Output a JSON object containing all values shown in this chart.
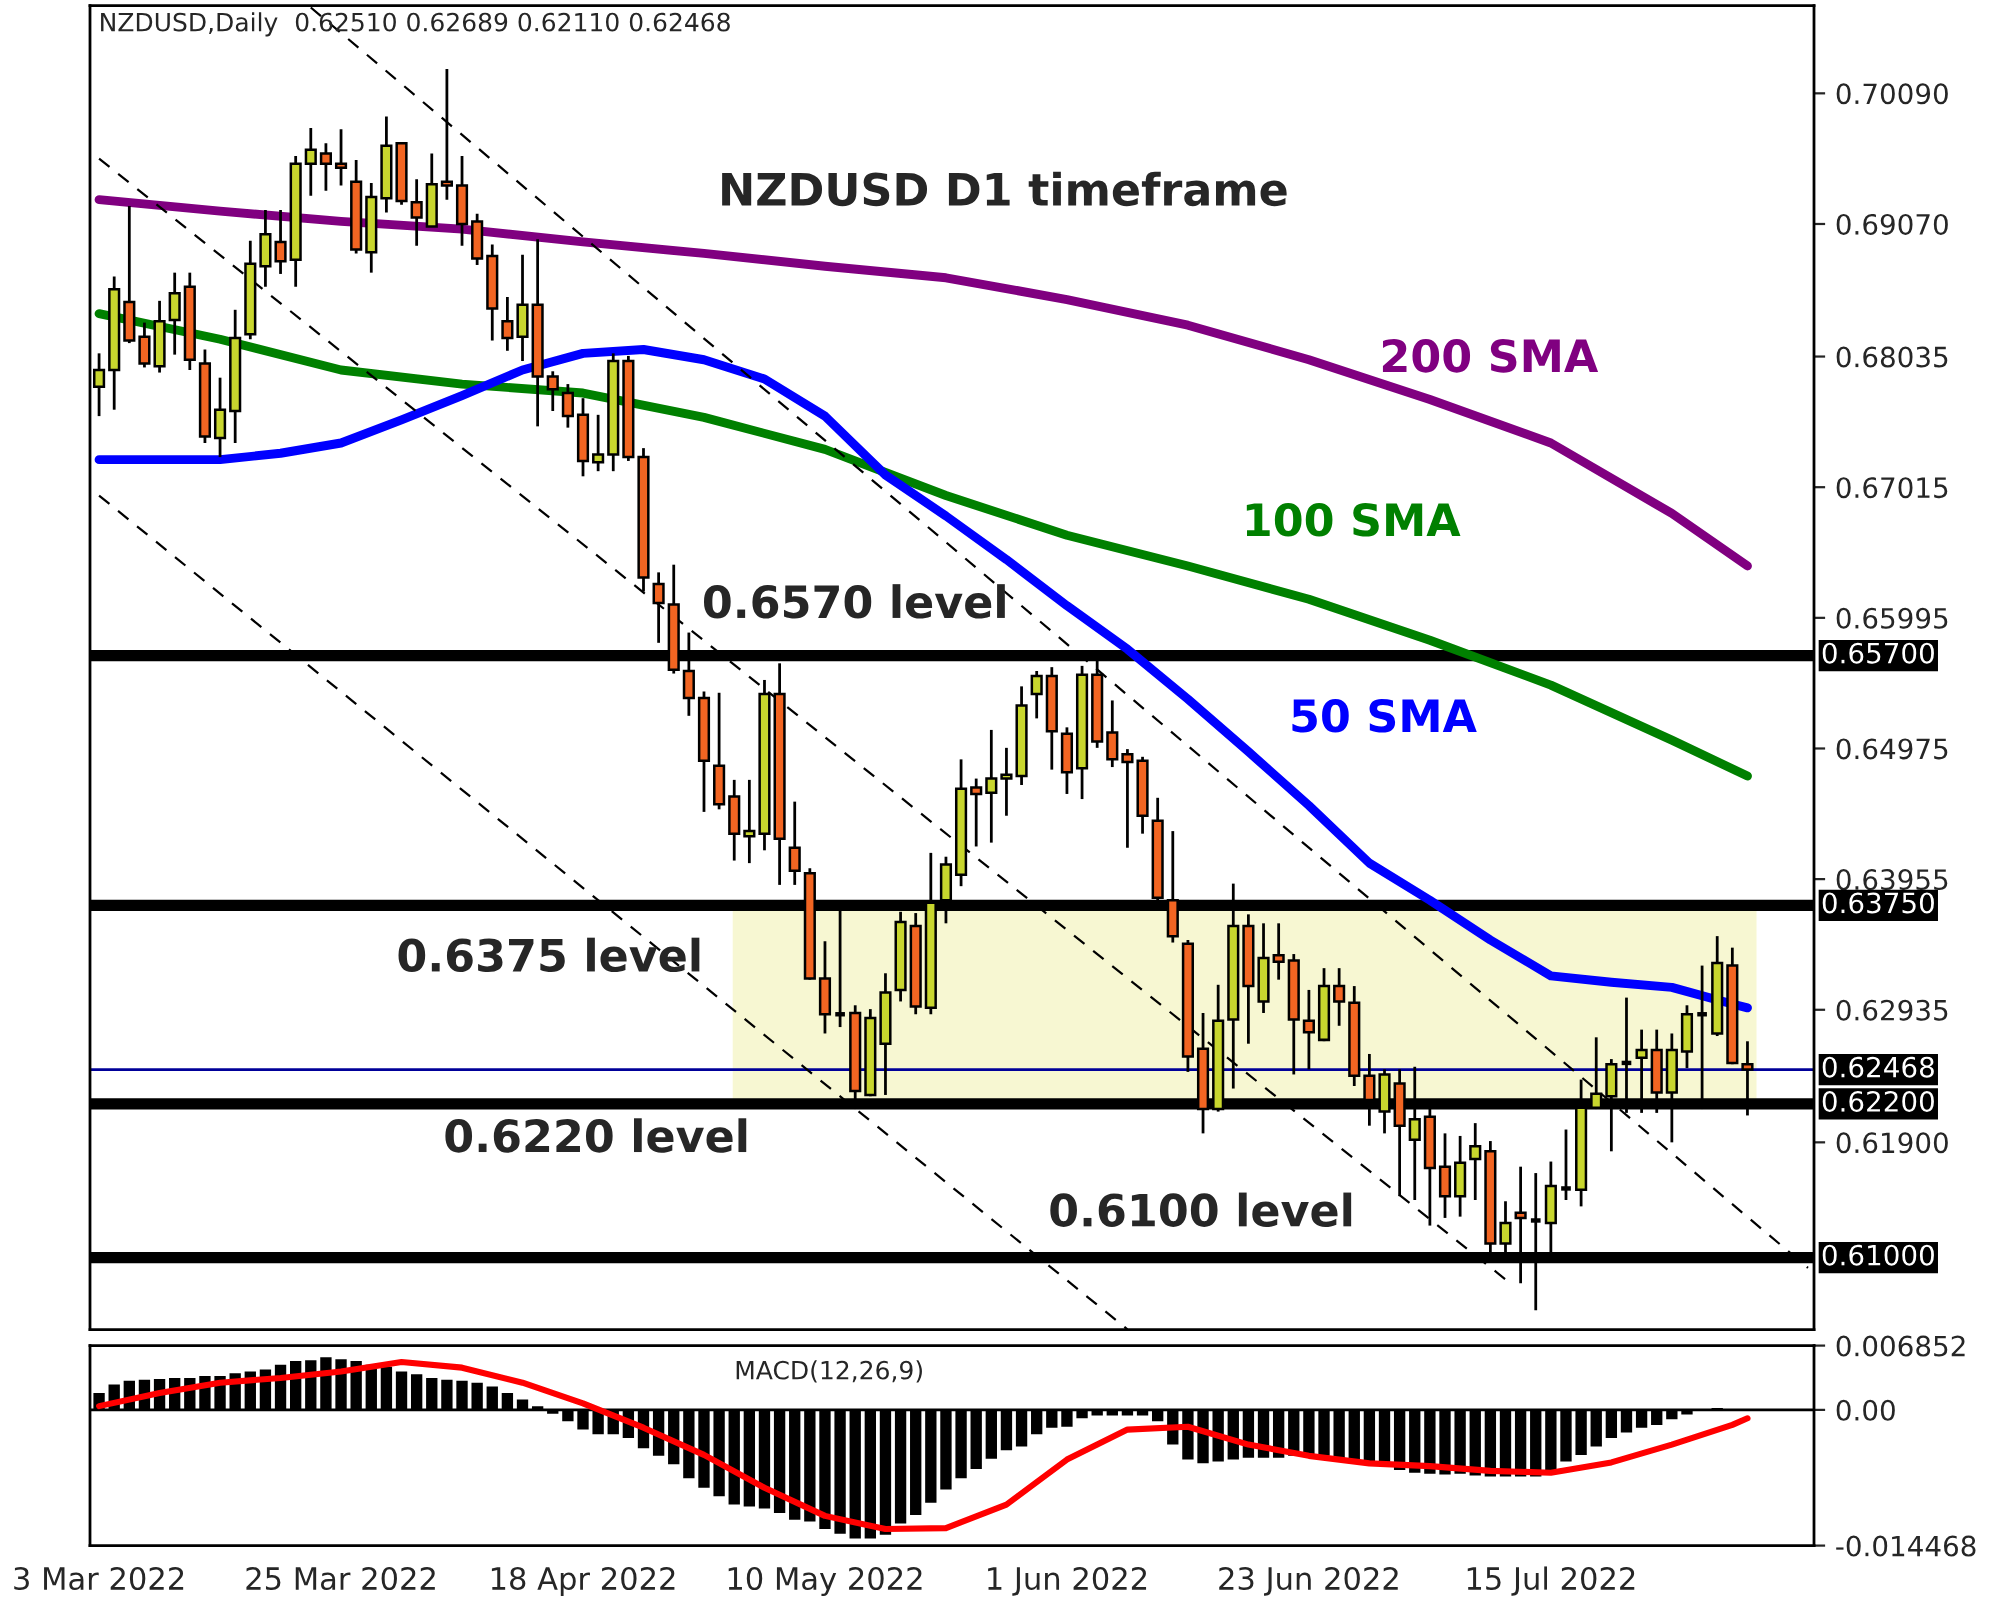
{
  "chart_data": [
    {
      "type": "candlestick",
      "title": "NZDUSD D1 timeframe",
      "categories": [
        null,
        null,
        null,
        null,
        null,
        null,
        null,
        null,
        null,
        null,
        null,
        null,
        null,
        null,
        null,
        null,
        null,
        null,
        null,
        null,
        null,
        null,
        null,
        null,
        null,
        null,
        null,
        null,
        null,
        null,
        null,
        null,
        null,
        null,
        null,
        null,
        null,
        null,
        null,
        null,
        null,
        null,
        null,
        null,
        null,
        null,
        null,
        null,
        null,
        null,
        null,
        null,
        null,
        null,
        null,
        null,
        null,
        null,
        null,
        null,
        null,
        null,
        null,
        null,
        null,
        null,
        null,
        null,
        null,
        null,
        null,
        null,
        null,
        null,
        null,
        null,
        null,
        null,
        null,
        null,
        null,
        null,
        null,
        null,
        null,
        null,
        null,
        null,
        null,
        null,
        null,
        null,
        null,
        null,
        null,
        null,
        null,
        null,
        null,
        null,
        null,
        null,
        null,
        null,
        null,
        null,
        null,
        null,
        null,
        null,
        null,
        null,
        null,
        null
      ],
      "ohlc": [
        [
          0.678,
          0.6806,
          0.6757,
          0.6793
        ],
        [
          0.6793,
          0.6866,
          0.6762,
          0.6856
        ],
        [
          0.6846,
          0.6921,
          0.6814,
          0.6816
        ],
        [
          0.6819,
          0.683,
          0.6795,
          0.6798
        ],
        [
          0.6796,
          0.6847,
          0.6791,
          0.6831
        ],
        [
          0.6832,
          0.6869,
          0.6805,
          0.6853
        ],
        [
          0.6858,
          0.6869,
          0.6793,
          0.6801
        ],
        [
          0.6798,
          0.6809,
          0.6736,
          0.6741
        ],
        [
          0.674,
          0.6787,
          0.6725,
          0.6762
        ],
        [
          0.6761,
          0.684,
          0.6736,
          0.6818
        ],
        [
          0.6821,
          0.6894,
          0.6817,
          0.6876
        ],
        [
          0.6874,
          0.6918,
          0.6858,
          0.6899
        ],
        [
          0.6893,
          0.6918,
          0.6868,
          0.6878
        ],
        [
          0.6879,
          0.696,
          0.6858,
          0.6954
        ],
        [
          0.6954,
          0.6982,
          0.6929,
          0.6965
        ],
        [
          0.6962,
          0.697,
          0.6933,
          0.6954
        ],
        [
          0.6954,
          0.6981,
          0.6937,
          0.6951
        ],
        [
          0.694,
          0.6957,
          0.6884,
          0.6887
        ],
        [
          0.6885,
          0.6939,
          0.6869,
          0.6928
        ],
        [
          0.6927,
          0.6991,
          0.6916,
          0.6968
        ],
        [
          0.697,
          0.6971,
          0.6922,
          0.6925
        ],
        [
          0.6924,
          0.6942,
          0.689,
          0.6912
        ],
        [
          0.6905,
          0.6962,
          0.6905,
          0.6938
        ],
        [
          0.694,
          0.7028,
          0.6926,
          0.6937
        ],
        [
          0.6937,
          0.696,
          0.689,
          0.6907
        ],
        [
          0.6909,
          0.6915,
          0.6875,
          0.688
        ],
        [
          0.6882,
          0.6891,
          0.6816,
          0.6841
        ],
        [
          0.6831,
          0.685,
          0.6808,
          0.6818
        ],
        [
          0.6819,
          0.6883,
          0.68,
          0.6844
        ],
        [
          0.6844,
          0.6895,
          0.6749,
          0.6788
        ],
        [
          0.6788,
          0.6792,
          0.6761,
          0.6778
        ],
        [
          0.6775,
          0.6782,
          0.6748,
          0.6757
        ],
        [
          0.6758,
          0.6771,
          0.671,
          0.6722
        ],
        [
          0.6721,
          0.6758,
          0.6714,
          0.6727
        ],
        [
          0.6727,
          0.6806,
          0.6714,
          0.68
        ],
        [
          0.68,
          0.6804,
          0.6722,
          0.6725
        ],
        [
          0.6725,
          0.6732,
          0.662,
          0.6631
        ],
        [
          0.6626,
          0.6635,
          0.658,
          0.6611
        ],
        [
          0.661,
          0.6641,
          0.6556,
          0.6559
        ],
        [
          0.6558,
          0.6588,
          0.6523,
          0.6537
        ],
        [
          0.6537,
          0.6542,
          0.6448,
          0.6488
        ],
        [
          0.6484,
          0.6541,
          0.645,
          0.6454
        ],
        [
          0.646,
          0.6473,
          0.641,
          0.6431
        ],
        [
          0.6429,
          0.6473,
          0.6408,
          0.6433
        ],
        [
          0.6431,
          0.6551,
          0.6418,
          0.654
        ],
        [
          0.654,
          0.6564,
          0.6391,
          0.6427
        ],
        [
          0.642,
          0.6456,
          0.6391,
          0.6402
        ],
        [
          0.64,
          0.6404,
          0.6317,
          0.6318
        ],
        [
          0.6318,
          0.6347,
          0.6275,
          0.629
        ],
        [
          0.629,
          0.6372,
          0.628,
          0.629
        ],
        [
          0.6291,
          0.6297,
          0.6216,
          0.623
        ],
        [
          0.6227,
          0.6294,
          0.6226,
          0.6287
        ],
        [
          0.6267,
          0.6322,
          0.6227,
          0.6307
        ],
        [
          0.6309,
          0.637,
          0.63,
          0.6362
        ],
        [
          0.6359,
          0.6369,
          0.629,
          0.6296
        ],
        [
          0.6295,
          0.6416,
          0.629,
          0.6377
        ],
        [
          0.6379,
          0.6413,
          0.6361,
          0.6407
        ],
        [
          0.6399,
          0.6489,
          0.639,
          0.6466
        ],
        [
          0.6467,
          0.6474,
          0.6421,
          0.6462
        ],
        [
          0.6463,
          0.6512,
          0.6424,
          0.6474
        ],
        [
          0.6474,
          0.6498,
          0.6445,
          0.6477
        ],
        [
          0.6476,
          0.6546,
          0.6469,
          0.6531
        ],
        [
          0.654,
          0.6558,
          0.6521,
          0.6554
        ],
        [
          0.6554,
          0.6561,
          0.6481,
          0.6511
        ],
        [
          0.6509,
          0.6514,
          0.6462,
          0.6479
        ],
        [
          0.6482,
          0.6562,
          0.6458,
          0.6555
        ],
        [
          0.6555,
          0.6572,
          0.6498,
          0.6503
        ],
        [
          0.651,
          0.6535,
          0.6483,
          0.6489
        ],
        [
          0.6493,
          0.6497,
          0.642,
          0.6487
        ],
        [
          0.6488,
          0.6491,
          0.6431,
          0.6445
        ],
        [
          0.6441,
          0.6459,
          0.6378,
          0.6381
        ],
        [
          0.6379,
          0.6433,
          0.6346,
          0.6351
        ],
        [
          0.6345,
          0.6348,
          0.6245,
          0.6257
        ],
        [
          0.6263,
          0.6291,
          0.6197,
          0.6216
        ],
        [
          0.6216,
          0.6313,
          0.6214,
          0.6285
        ],
        [
          0.6286,
          0.6392,
          0.6232,
          0.6359
        ],
        [
          0.6359,
          0.6368,
          0.6267,
          0.6312
        ],
        [
          0.63,
          0.6361,
          0.6291,
          0.6334
        ],
        [
          0.6336,
          0.6361,
          0.6317,
          0.6331
        ],
        [
          0.6332,
          0.6337,
          0.6243,
          0.6286
        ],
        [
          0.6285,
          0.6309,
          0.6247,
          0.6276
        ],
        [
          0.627,
          0.6326,
          0.6269,
          0.6312
        ],
        [
          0.6312,
          0.6326,
          0.6281,
          0.63
        ],
        [
          0.6299,
          0.6312,
          0.6234,
          0.6242
        ],
        [
          0.6242,
          0.6259,
          0.6203,
          0.6223
        ],
        [
          0.6214,
          0.6247,
          0.6197,
          0.6243
        ],
        [
          0.6236,
          0.6247,
          0.6148,
          0.6203
        ],
        [
          0.6192,
          0.6249,
          0.6145,
          0.6208
        ],
        [
          0.621,
          0.6219,
          0.6125,
          0.617
        ],
        [
          0.6171,
          0.6197,
          0.6131,
          0.6148
        ],
        [
          0.6148,
          0.6195,
          0.6132,
          0.6174
        ],
        [
          0.6177,
          0.6205,
          0.6145,
          0.6187
        ],
        [
          0.6183,
          0.6191,
          0.6096,
          0.6111
        ],
        [
          0.6111,
          0.6144,
          0.6104,
          0.6127
        ],
        [
          0.6135,
          0.6171,
          0.608,
          0.6131
        ],
        [
          0.6129,
          0.6166,
          0.6059,
          0.6129
        ],
        [
          0.6127,
          0.6175,
          0.6104,
          0.6156
        ],
        [
          0.6154,
          0.62,
          0.6145,
          0.6154
        ],
        [
          0.6153,
          0.6239,
          0.614,
          0.6217
        ],
        [
          0.6217,
          0.6272,
          0.6216,
          0.6228
        ],
        [
          0.6226,
          0.6255,
          0.6183,
          0.6251
        ],
        [
          0.6252,
          0.6303,
          0.6213,
          0.6252
        ],
        [
          0.6256,
          0.6278,
          0.6213,
          0.6262
        ],
        [
          0.6262,
          0.6278,
          0.6213,
          0.6229
        ],
        [
          0.6229,
          0.6275,
          0.619,
          0.6262
        ],
        [
          0.6261,
          0.6297,
          0.6248,
          0.629
        ],
        [
          0.629,
          0.6328,
          0.6216,
          0.629
        ],
        [
          0.6275,
          0.6351,
          0.6273,
          0.633
        ],
        [
          0.6328,
          0.6342,
          0.6251,
          0.6252
        ],
        [
          0.6251,
          0.62689,
          0.6211,
          0.62468
        ],
        null,
        null,
        null,
        null
      ],
      "series": [
        {
          "name": "200 SMA",
          "type": "line",
          "line_style": "solid",
          "color": "#800080",
          "values": [
            0.6926,
            null,
            null,
            null,
            null,
            null,
            null,
            null,
            0.6917,
            null,
            null,
            null,
            null,
            null,
            null,
            null,
            0.6909,
            null,
            null,
            null,
            null,
            null,
            null,
            null,
            0.6903,
            null,
            null,
            null,
            null,
            null,
            null,
            null,
            0.6893,
            null,
            null,
            null,
            null,
            null,
            null,
            null,
            0.6884,
            null,
            null,
            null,
            null,
            null,
            null,
            null,
            0.6874,
            null,
            null,
            null,
            null,
            null,
            null,
            null,
            0.6865,
            null,
            null,
            null,
            null,
            null,
            null,
            null,
            0.6848,
            null,
            null,
            null,
            null,
            null,
            null,
            null,
            0.6828,
            null,
            null,
            null,
            null,
            null,
            null,
            null,
            0.6801,
            null,
            null,
            null,
            null,
            null,
            null,
            null,
            0.677,
            null,
            null,
            null,
            null,
            null,
            null,
            null,
            0.6736,
            null,
            null,
            null,
            null,
            null,
            null,
            null,
            0.6681,
            null,
            null,
            null,
            null,
            0.664,
            null,
            null,
            null,
            null
          ]
        },
        {
          "name": "100 SMA",
          "type": "line",
          "line_style": "solid",
          "color": "#008000",
          "values": [
            0.6837,
            null,
            null,
            null,
            null,
            null,
            null,
            null,
            0.6817,
            null,
            null,
            null,
            null,
            null,
            null,
            null,
            0.6793,
            null,
            null,
            null,
            null,
            null,
            null,
            null,
            0.6782,
            null,
            null,
            null,
            null,
            null,
            null,
            null,
            0.6775,
            null,
            null,
            null,
            null,
            null,
            null,
            null,
            0.6756,
            null,
            null,
            null,
            null,
            null,
            null,
            null,
            0.6731,
            null,
            null,
            null,
            null,
            null,
            null,
            null,
            0.6695,
            null,
            null,
            null,
            null,
            null,
            null,
            null,
            0.6664,
            null,
            null,
            null,
            null,
            null,
            null,
            null,
            0.664,
            null,
            null,
            null,
            null,
            null,
            null,
            null,
            0.6614,
            null,
            null,
            null,
            null,
            null,
            null,
            null,
            0.6582,
            null,
            null,
            null,
            null,
            null,
            null,
            null,
            0.6547,
            null,
            null,
            null,
            null,
            null,
            null,
            null,
            0.6504,
            null,
            null,
            null,
            null,
            0.6476,
            null,
            null,
            null,
            null
          ]
        },
        {
          "name": "50 SMA",
          "type": "line",
          "line_style": "solid",
          "color": "#0000ff",
          "values": [
            0.6723,
            null,
            null,
            null,
            0.6723,
            null,
            null,
            null,
            0.6723,
            null,
            null,
            null,
            0.6728,
            null,
            null,
            null,
            0.6736,
            null,
            null,
            null,
            0.6754,
            null,
            null,
            null,
            0.6773,
            null,
            null,
            null,
            0.6793,
            null,
            null,
            null,
            0.6806,
            null,
            null,
            null,
            0.6809,
            null,
            null,
            null,
            0.6801,
            null,
            null,
            null,
            0.6786,
            null,
            null,
            null,
            0.6757,
            null,
            null,
            null,
            0.6711,
            null,
            null,
            null,
            0.6679,
            null,
            null,
            null,
            0.6645,
            null,
            null,
            null,
            0.6609,
            null,
            null,
            null,
            0.6575,
            null,
            null,
            null,
            0.6536,
            null,
            null,
            null,
            0.6495,
            null,
            null,
            null,
            0.6453,
            null,
            null,
            null,
            0.6408,
            null,
            null,
            null,
            0.6379,
            null,
            null,
            null,
            0.6348,
            null,
            null,
            null,
            0.632,
            null,
            null,
            null,
            0.6315,
            null,
            null,
            null,
            0.6311,
            null,
            null,
            null,
            0.6298,
            0.6295,
            null,
            null,
            null,
            null
          ]
        },
        {
          "type": "line",
          "line_style": "dashed",
          "color": "#000000",
          "values": [
            null,
            null,
            null,
            null,
            null,
            null,
            null,
            null,
            null,
            null,
            null,
            null,
            null,
            null,
            0.7076,
            null,
            null,
            null,
            null,
            null,
            null,
            null,
            null,
            null,
            null,
            null,
            null,
            null,
            null,
            null,
            null,
            null,
            null,
            null,
            null,
            null,
            null,
            null,
            null,
            null,
            null,
            null,
            null,
            null,
            null,
            null,
            null,
            null,
            null,
            null,
            null,
            null,
            null,
            null,
            null,
            null,
            null,
            null,
            null,
            null,
            null,
            null,
            null,
            null,
            null,
            null,
            null,
            null,
            null,
            null,
            null,
            null,
            null,
            null,
            null,
            null,
            null,
            null,
            null,
            null,
            null,
            null,
            null,
            null,
            null,
            null,
            null,
            null,
            null,
            null,
            null,
            null,
            null,
            null,
            null,
            null,
            null,
            null,
            null,
            null,
            null,
            null,
            null,
            null,
            null,
            null,
            null,
            null,
            null,
            null,
            null,
            null,
            null,
            0.6092
          ]
        },
        {
          "type": "line",
          "line_style": "dashed",
          "color": "#000000",
          "values": [
            0.6958,
            null,
            null,
            null,
            null,
            null,
            null,
            null,
            null,
            null,
            null,
            null,
            null,
            null,
            null,
            null,
            null,
            null,
            null,
            null,
            null,
            null,
            null,
            null,
            null,
            null,
            null,
            null,
            null,
            null,
            null,
            null,
            null,
            null,
            null,
            null,
            null,
            null,
            null,
            null,
            null,
            null,
            null,
            null,
            null,
            null,
            null,
            null,
            null,
            null,
            null,
            null,
            null,
            null,
            null,
            null,
            null,
            null,
            null,
            null,
            null,
            null,
            null,
            null,
            null,
            null,
            null,
            null,
            null,
            null,
            null,
            null,
            null,
            null,
            null,
            null,
            null,
            null,
            null,
            null,
            null,
            null,
            null,
            null,
            null,
            null,
            null,
            null,
            null,
            null,
            null,
            null,
            null,
            0.6083,
            null,
            null,
            null,
            null,
            null,
            null,
            null,
            null,
            null,
            null,
            null,
            null,
            null,
            null,
            null,
            null,
            null,
            null,
            null,
            null
          ]
        },
        {
          "type": "line",
          "line_style": "dashed",
          "color": "#000000",
          "values": [
            0.6695,
            null,
            null,
            null,
            null,
            null,
            null,
            null,
            null,
            null,
            null,
            null,
            null,
            null,
            null,
            null,
            null,
            null,
            null,
            null,
            null,
            null,
            null,
            null,
            null,
            null,
            null,
            null,
            null,
            null,
            null,
            null,
            null,
            null,
            null,
            null,
            null,
            null,
            null,
            null,
            null,
            null,
            null,
            null,
            null,
            null,
            null,
            null,
            null,
            null,
            null,
            null,
            null,
            null,
            null,
            null,
            null,
            null,
            null,
            null,
            null,
            null,
            null,
            null,
            null,
            null,
            null,
            null,
            0.6044,
            null,
            null,
            null,
            null,
            null,
            null,
            null,
            null,
            null,
            null,
            null,
            null,
            null,
            null,
            null,
            null,
            null,
            null,
            null,
            null,
            null,
            null,
            null,
            null,
            null,
            null,
            null,
            null,
            null,
            null,
            null,
            null,
            null,
            null,
            null,
            null,
            null,
            null,
            null,
            null,
            null,
            null,
            null,
            null,
            null
          ]
        }
      ],
      "ylim": [
        0.60438,
        0.70775
      ],
      "yticks": [
        {
          "value": 0.7009,
          "label": "0.70090"
        },
        {
          "value": 0.6907,
          "label": "0.69070"
        },
        {
          "value": 0.68035,
          "label": "0.68035"
        },
        {
          "value": 0.67015,
          "label": "0.67015"
        },
        {
          "value": 0.65995,
          "label": "0.65995"
        },
        {
          "value": 0.64975,
          "label": "0.64975"
        },
        {
          "value": 0.63955,
          "label": "0.63955"
        },
        {
          "value": 0.62935,
          "label": "0.62935"
        },
        {
          "value": 0.619,
          "label": "0.61900"
        }
      ],
      "tick_labels": "y",
      "ref_lines": [
        {
          "axis": "y",
          "value": 0.657,
          "label": "0.65700",
          "color": "#000000",
          "line_style": "solid"
        },
        {
          "axis": "y",
          "value": 0.6375,
          "label": "0.63750",
          "color": "#000000",
          "line_style": "solid"
        },
        {
          "axis": "y",
          "value": 0.622,
          "label": "0.62200",
          "color": "#000000",
          "line_style": "solid"
        },
        {
          "axis": "y",
          "value": 0.61,
          "label": "0.61000",
          "color": "#000000",
          "line_style": "solid"
        },
        {
          "axis": "y",
          "value": 0.62468,
          "label": "0.62468",
          "color": "#000099",
          "line_style": "solid"
        }
      ],
      "bands": [
        {
          "axis": "y",
          "from": 0.622,
          "to": 0.6375,
          "color": "#f7f7d2"
        }
      ],
      "annotations": [
        "NZDUSD,Daily  0.62510 0.62689 0.62110 0.62468",
        "0.6570 level",
        "0.6375 level",
        "0.6220 level",
        "0.6100 level"
      ]
    },
    {
      "type": "bar",
      "title": "MACD(12,26,9)",
      "categories": [
        "3 Mar 2022",
        null,
        null,
        null,
        null,
        null,
        null,
        null,
        null,
        null,
        null,
        null,
        null,
        null,
        null,
        null,
        "25 Mar 2022",
        null,
        null,
        null,
        null,
        null,
        null,
        null,
        null,
        null,
        null,
        null,
        null,
        null,
        null,
        null,
        "18 Apr 2022",
        null,
        null,
        null,
        null,
        null,
        null,
        null,
        null,
        null,
        null,
        null,
        null,
        null,
        null,
        null,
        "10 May 2022",
        null,
        null,
        null,
        null,
        null,
        null,
        null,
        null,
        null,
        null,
        null,
        null,
        null,
        null,
        null,
        "1 Jun 2022",
        null,
        null,
        null,
        null,
        null,
        null,
        null,
        null,
        null,
        null,
        null,
        null,
        null,
        null,
        null,
        "23 Jun 2022",
        null,
        null,
        null,
        null,
        null,
        null,
        null,
        null,
        null,
        null,
        null,
        null,
        null,
        null,
        null,
        "15 Jul 2022",
        null,
        null,
        null,
        null,
        null,
        null,
        null,
        null,
        null,
        null,
        null,
        null,
        null,
        null,
        null,
        null,
        null
      ],
      "series": [
        {
          "type": "bar",
          "color": "#000000",
          "values": [
            0.0018,
            0.0027,
            0.0031,
            0.0032,
            0.0033,
            0.0034,
            0.0034,
            0.0036,
            0.0036,
            0.0039,
            0.0041,
            0.0043,
            0.0048,
            0.0052,
            0.0053,
            0.0056,
            0.0054,
            0.0052,
            0.0048,
            0.0046,
            0.0041,
            0.0038,
            0.0034,
            0.0032,
            0.0031,
            0.0029,
            0.0025,
            0.0018,
            0.0011,
            0.0004,
            -0.0004,
            -0.0012,
            -0.0021,
            -0.0026,
            -0.0026,
            -0.003,
            -0.0041,
            -0.0049,
            -0.0058,
            -0.0073,
            -0.0083,
            -0.0092,
            -0.0101,
            -0.0103,
            -0.0105,
            -0.011,
            -0.0117,
            -0.0119,
            -0.0127,
            -0.0132,
            -0.0137,
            -0.0137,
            -0.0133,
            -0.0121,
            -0.0112,
            -0.0099,
            -0.0085,
            -0.0073,
            -0.0063,
            -0.0052,
            -0.0043,
            -0.0039,
            -0.0026,
            -0.0019,
            -0.0018,
            -0.0009,
            -0.0006,
            -0.0006,
            -0.0006,
            -0.0006,
            -0.0012,
            -0.0037,
            -0.0053,
            -0.0057,
            -0.0055,
            -0.0053,
            -0.0051,
            -0.0051,
            -0.0051,
            -0.0049,
            -0.0049,
            -0.0049,
            -0.0053,
            -0.0057,
            -0.0058,
            -0.006,
            -0.0064,
            -0.0067,
            -0.0068,
            -0.0069,
            -0.0068,
            -0.007,
            -0.0071,
            -0.0071,
            -0.0071,
            -0.0071,
            -0.0065,
            -0.0055,
            -0.0048,
            -0.0039,
            -0.003,
            -0.0024,
            -0.0019,
            -0.0016,
            -0.001,
            -0.0005,
            0.0001,
            0.0002,
            0.0001,
            0.0001,
            null,
            null,
            null,
            null
          ]
        },
        {
          "type": "line",
          "line_style": "solid",
          "color": "#ff0000",
          "values": [
            0.0004,
            null,
            null,
            null,
            0.0018,
            null,
            null,
            null,
            0.0029,
            null,
            null,
            null,
            0.0034,
            null,
            null,
            null,
            0.0041,
            null,
            null,
            null,
            0.0051,
            null,
            null,
            null,
            0.0045,
            null,
            null,
            null,
            0.0029,
            null,
            null,
            null,
            0.0007,
            null,
            null,
            null,
            -0.0019,
            null,
            null,
            null,
            -0.0048,
            null,
            null,
            null,
            -0.0083,
            null,
            null,
            null,
            -0.0113,
            null,
            null,
            null,
            -0.0127,
            null,
            null,
            null,
            -0.0126,
            null,
            null,
            null,
            -0.0101,
            null,
            null,
            null,
            -0.0053,
            null,
            null,
            null,
            -0.0021,
            null,
            null,
            null,
            -0.0018,
            null,
            null,
            null,
            -0.0037,
            null,
            null,
            null,
            -0.0049,
            null,
            null,
            null,
            -0.0057,
            null,
            null,
            null,
            -0.006,
            null,
            null,
            null,
            -0.0065,
            null,
            null,
            null,
            -0.0067,
            null,
            null,
            null,
            -0.0056,
            null,
            null,
            null,
            -0.0037,
            null,
            null,
            null,
            -0.0016,
            -0.0009,
            null,
            null,
            null,
            null
          ]
        }
      ],
      "ylim": [
        -0.014468,
        0.006852
      ],
      "yticks": [
        0.006852,
        {
          "value": 0,
          "label": "0.00"
        },
        -0.014468
      ]
    }
  ]
}
